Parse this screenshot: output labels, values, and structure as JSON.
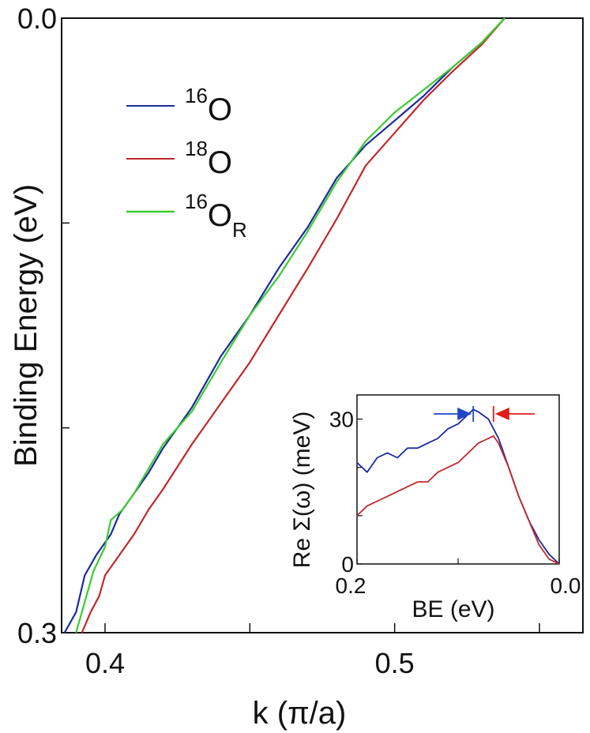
{
  "chart_data": {
    "main": {
      "type": "line",
      "xlabel": "k (π/a)",
      "ylabel": "Binding Energy (eV)",
      "xlim": [
        0.385,
        0.565
      ],
      "ylim": [
        0.3,
        0.0
      ],
      "x_ticks": [
        0.4,
        0.45,
        0.5,
        0.55
      ],
      "x_tick_labels": [
        "0.4",
        "",
        "0.5",
        ""
      ],
      "y_ticks": [
        0.0,
        0.1,
        0.2,
        0.3
      ],
      "y_tick_labels": [
        "0.0",
        "",
        "",
        "0.3"
      ],
      "legend_position": "top-left",
      "series": [
        {
          "name": "16O",
          "legend_sup": "16",
          "legend_base": "O",
          "legend_sub": "",
          "color": "#1c2a9c",
          "points": [
            [
              0.386,
              0.3
            ],
            [
              0.39,
              0.29
            ],
            [
              0.393,
              0.272
            ],
            [
              0.397,
              0.262
            ],
            [
              0.402,
              0.252
            ],
            [
              0.405,
              0.242
            ],
            [
              0.41,
              0.232
            ],
            [
              0.415,
              0.222
            ],
            [
              0.42,
              0.21
            ],
            [
              0.43,
              0.19
            ],
            [
              0.44,
              0.165
            ],
            [
              0.45,
              0.145
            ],
            [
              0.46,
              0.122
            ],
            [
              0.47,
              0.102
            ],
            [
              0.475,
              0.09
            ],
            [
              0.48,
              0.078
            ],
            [
              0.49,
              0.062
            ],
            [
              0.5,
              0.05
            ],
            [
              0.51,
              0.038
            ],
            [
              0.52,
              0.024
            ],
            [
              0.53,
              0.012
            ],
            [
              0.538,
              0.0
            ]
          ]
        },
        {
          "name": "18O",
          "legend_sup": "18",
          "legend_base": "O",
          "legend_sub": "",
          "color": "#c0282a",
          "points": [
            [
              0.392,
              0.3
            ],
            [
              0.395,
              0.29
            ],
            [
              0.398,
              0.282
            ],
            [
              0.4,
              0.272
            ],
            [
              0.405,
              0.262
            ],
            [
              0.41,
              0.252
            ],
            [
              0.415,
              0.24
            ],
            [
              0.42,
              0.23
            ],
            [
              0.43,
              0.208
            ],
            [
              0.44,
              0.188
            ],
            [
              0.45,
              0.168
            ],
            [
              0.46,
              0.145
            ],
            [
              0.47,
              0.122
            ],
            [
              0.475,
              0.11
            ],
            [
              0.48,
              0.098
            ],
            [
              0.49,
              0.072
            ],
            [
              0.5,
              0.056
            ],
            [
              0.51,
              0.04
            ],
            [
              0.52,
              0.026
            ],
            [
              0.53,
              0.013
            ],
            [
              0.538,
              0.0
            ]
          ]
        },
        {
          "name": "16OR",
          "legend_sup": "16",
          "legend_base": "O",
          "legend_sub": "R",
          "color": "#3ccc30",
          "points": [
            [
              0.39,
              0.3
            ],
            [
              0.393,
              0.285
            ],
            [
              0.396,
              0.27
            ],
            [
              0.4,
              0.258
            ],
            [
              0.402,
              0.245
            ],
            [
              0.406,
              0.24
            ],
            [
              0.41,
              0.232
            ],
            [
              0.415,
              0.22
            ],
            [
              0.42,
              0.208
            ],
            [
              0.43,
              0.192
            ],
            [
              0.44,
              0.168
            ],
            [
              0.45,
              0.145
            ],
            [
              0.46,
              0.126
            ],
            [
              0.47,
              0.104
            ],
            [
              0.48,
              0.08
            ],
            [
              0.49,
              0.06
            ],
            [
              0.5,
              0.046
            ],
            [
              0.51,
              0.035
            ],
            [
              0.52,
              0.024
            ],
            [
              0.53,
              0.012
            ],
            [
              0.538,
              0.0
            ]
          ]
        }
      ]
    },
    "inset": {
      "type": "line",
      "xlabel": "BE (eV)",
      "ylabel": "Re Σ(ω) (meV)",
      "xlim": [
        0.2,
        0.0
      ],
      "ylim": [
        0,
        35
      ],
      "x_tick_labels": [
        "0.2",
        "0.0"
      ],
      "x_ticks": [
        0.2,
        0.1,
        0.0
      ],
      "y_ticks": [
        0,
        10,
        20,
        30
      ],
      "y_tick_labels": [
        "0",
        "",
        "",
        "30"
      ],
      "series": [
        {
          "name": "16O",
          "color": "#1c2a9c",
          "points": [
            [
              0.2,
              21
            ],
            [
              0.19,
              19
            ],
            [
              0.18,
              22
            ],
            [
              0.17,
              23
            ],
            [
              0.16,
              22
            ],
            [
              0.15,
              24
            ],
            [
              0.14,
              24
            ],
            [
              0.13,
              25
            ],
            [
              0.12,
              26
            ],
            [
              0.11,
              28
            ],
            [
              0.1,
              29
            ],
            [
              0.09,
              31
            ],
            [
              0.085,
              32
            ],
            [
              0.08,
              31.5
            ],
            [
              0.07,
              30
            ],
            [
              0.06,
              26
            ],
            [
              0.05,
              20
            ],
            [
              0.04,
              14
            ],
            [
              0.03,
              9
            ],
            [
              0.02,
              5
            ],
            [
              0.01,
              2
            ],
            [
              0.0,
              0
            ]
          ]
        },
        {
          "name": "18O",
          "color": "#c0282a",
          "points": [
            [
              0.2,
              10
            ],
            [
              0.19,
              12
            ],
            [
              0.18,
              13
            ],
            [
              0.17,
              14
            ],
            [
              0.16,
              15
            ],
            [
              0.15,
              16
            ],
            [
              0.14,
              17
            ],
            [
              0.13,
              17
            ],
            [
              0.12,
              19
            ],
            [
              0.11,
              20
            ],
            [
              0.1,
              21
            ],
            [
              0.09,
              23
            ],
            [
              0.08,
              25
            ],
            [
              0.07,
              26
            ],
            [
              0.065,
              26.5
            ],
            [
              0.06,
              25
            ],
            [
              0.05,
              20
            ],
            [
              0.04,
              14
            ],
            [
              0.03,
              9
            ],
            [
              0.02,
              4
            ],
            [
              0.01,
              1
            ],
            [
              0.0,
              0
            ]
          ]
        }
      ],
      "markers": [
        {
          "name": "16O-peak",
          "at": 0.085,
          "color": "#1e46c8",
          "direction": "right"
        },
        {
          "name": "18O-peak",
          "at": 0.065,
          "color": "#e01c1c",
          "direction": "left"
        }
      ]
    }
  }
}
